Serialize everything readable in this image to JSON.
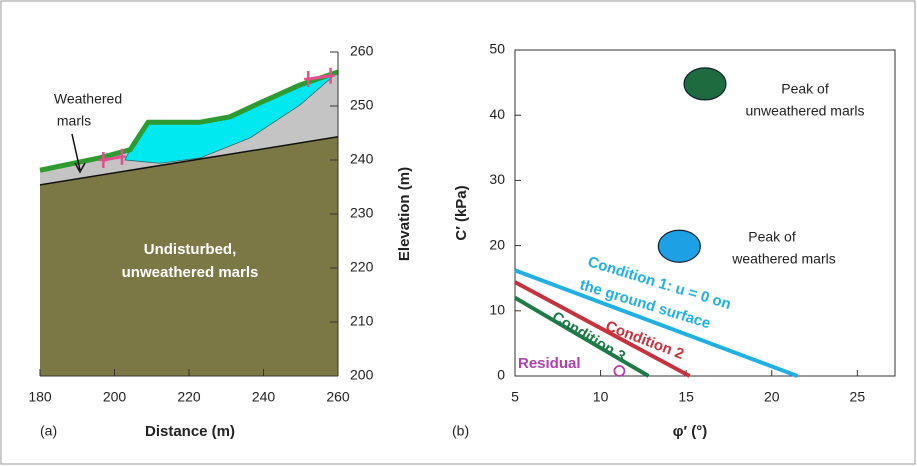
{
  "chart_data": [
    {
      "type": "section",
      "panel": "(a)",
      "xlabel": "Distance (m)",
      "ylabel": "Elevation (m)",
      "xlim": [
        180,
        260
      ],
      "ylim": [
        200,
        260
      ],
      "xticks": [
        180,
        200,
        220,
        240,
        260
      ],
      "yticks": [
        200,
        210,
        220,
        230,
        240,
        250,
        260
      ],
      "series": [
        {
          "x": [
            180,
            196.1,
            204.2,
            209,
            223,
            231,
            239.1,
            249.8,
            260
          ],
          "values": [
            238.1,
            240.4,
            241.9,
            247,
            247,
            248,
            250.6,
            253.9,
            256.3
          ],
          "color": "#2f9a2f"
        },
        {
          "x": [
            180,
            260
          ],
          "values": [
            235.4,
            244.3
          ],
          "color": "#7b7846"
        },
        {
          "x": [
            202.8,
            212.2,
            223,
            236.4,
            249.8,
            260
          ],
          "values": [
            240,
            239.4,
            240.4,
            244.1,
            250.2,
            256.3
          ],
          "color": "#00e8f0"
        }
      ],
      "weathered_color": "#c4c4c4",
      "markers": {
        "x": [
          197,
          202,
          252,
          258
        ],
        "values": [
          240,
          240.6,
          255,
          255.6
        ],
        "color": "#e0508a"
      },
      "annotations": [
        {
          "text": [
            "Weathered",
            "marls"
          ]
        },
        {
          "text": [
            "Undisturbed,",
            "unweathered marls"
          ]
        }
      ]
    },
    {
      "type": "strength",
      "panel": "(b)",
      "xlabel": "φ′ (°)",
      "ylabel": "C′ (kPa)",
      "xlim": [
        5,
        27.2
      ],
      "ylim": [
        0,
        50
      ],
      "xticks": [
        5,
        10,
        15,
        20,
        25
      ],
      "yticks": [
        0,
        10,
        20,
        30,
        40,
        50
      ],
      "series": [
        {
          "label": [
            "Condition 1: u = 0 on",
            "the ground surface"
          ],
          "x": [
            5,
            21.5
          ],
          "values": [
            16.2,
            0
          ],
          "color": "#1fb0e4"
        },
        {
          "label": [
            "Condition 2"
          ],
          "x": [
            5,
            15.2
          ],
          "values": [
            14.4,
            0
          ],
          "color": "#c8323c"
        },
        {
          "label": [
            "Condition 3"
          ],
          "x": [
            5,
            12.8
          ],
          "values": [
            12,
            0
          ],
          "color": "#1e7a46"
        }
      ],
      "ellipses": [
        {
          "x": 16.1,
          "y": 44.8,
          "color": "#1e6b3f",
          "label": [
            "Peak of",
            "unweathered marls"
          ]
        },
        {
          "x": 14.6,
          "y": 19.9,
          "color": "#1ea0e4",
          "label": [
            "Peak of",
            "weathered marls"
          ]
        }
      ],
      "residual": {
        "x": 11.1,
        "y": 0,
        "label": "Residual",
        "color": "#b040b0"
      }
    }
  ]
}
